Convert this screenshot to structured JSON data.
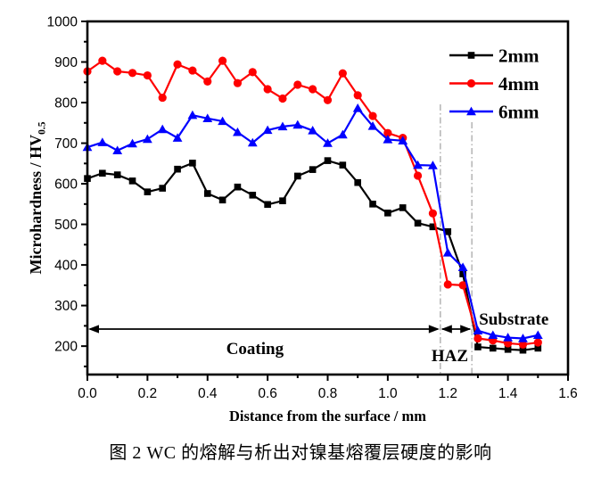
{
  "caption": "图 2 WC 的熔解与析出对镍基熔覆层硬度的影响",
  "chart_data": {
    "type": "line",
    "title": "",
    "xlabel": "Distance from the surface / mm",
    "ylabel": "Microhardness / HV0.5",
    "ylabel_base": "Microhardness / HV",
    "ylabel_subscript": "0.5",
    "xlim": [
      0,
      1.6
    ],
    "ylim": [
      130,
      1000
    ],
    "grid": false,
    "legend_position": "top-right",
    "x_tick_labels": [
      "0.0",
      "0.2",
      "0.4",
      "0.6",
      "0.8",
      "1.0",
      "1.2",
      "1.4",
      "1.6"
    ],
    "y_tick_labels": [
      "200",
      "300",
      "400",
      "500",
      "600",
      "700",
      "800",
      "900",
      "1000"
    ],
    "x_major_step": 0.2,
    "x_minor_step": 0.1,
    "y_major_step": 100,
    "y_minor_step": 50,
    "x": [
      0.0,
      0.05,
      0.1,
      0.15,
      0.2,
      0.25,
      0.3,
      0.35,
      0.4,
      0.45,
      0.5,
      0.55,
      0.6,
      0.65,
      0.7,
      0.75,
      0.8,
      0.85,
      0.9,
      0.95,
      1.0,
      1.05,
      1.1,
      1.15,
      1.2,
      1.25,
      1.3,
      1.35,
      1.4,
      1.45,
      1.5
    ],
    "series": [
      {
        "name": "2mm",
        "color": "#000000",
        "marker": "square",
        "values": [
          613,
          626,
          622,
          607,
          580,
          589,
          636,
          651,
          576,
          560,
          592,
          572,
          549,
          558,
          619,
          635,
          657,
          646,
          603,
          550,
          528,
          541,
          503,
          494,
          482,
          378,
          198,
          195,
          192,
          190,
          195
        ]
      },
      {
        "name": "4mm",
        "color": "#ff0000",
        "marker": "circle",
        "values": [
          877,
          903,
          877,
          873,
          867,
          812,
          894,
          879,
          852,
          903,
          848,
          875,
          833,
          810,
          844,
          833,
          806,
          872,
          818,
          767,
          725,
          713,
          620,
          527,
          352,
          350,
          219,
          214,
          207,
          204,
          209
        ]
      },
      {
        "name": "6mm",
        "color": "#0000ff",
        "marker": "triangle",
        "values": [
          690,
          702,
          682,
          699,
          710,
          734,
          713,
          769,
          761,
          754,
          727,
          701,
          732,
          741,
          745,
          731,
          700,
          721,
          786,
          742,
          709,
          706,
          646,
          645,
          430,
          394,
          238,
          227,
          221,
          219,
          227
        ]
      }
    ],
    "annotations": {
      "coating_label": "Coating",
      "haz_label": "HAZ",
      "substrate_label": "Substrate",
      "region_boundaries_mm": [
        1.175,
        1.28
      ],
      "arrow_hv_level": 242,
      "boundary_color": "#b9b9b9"
    }
  }
}
